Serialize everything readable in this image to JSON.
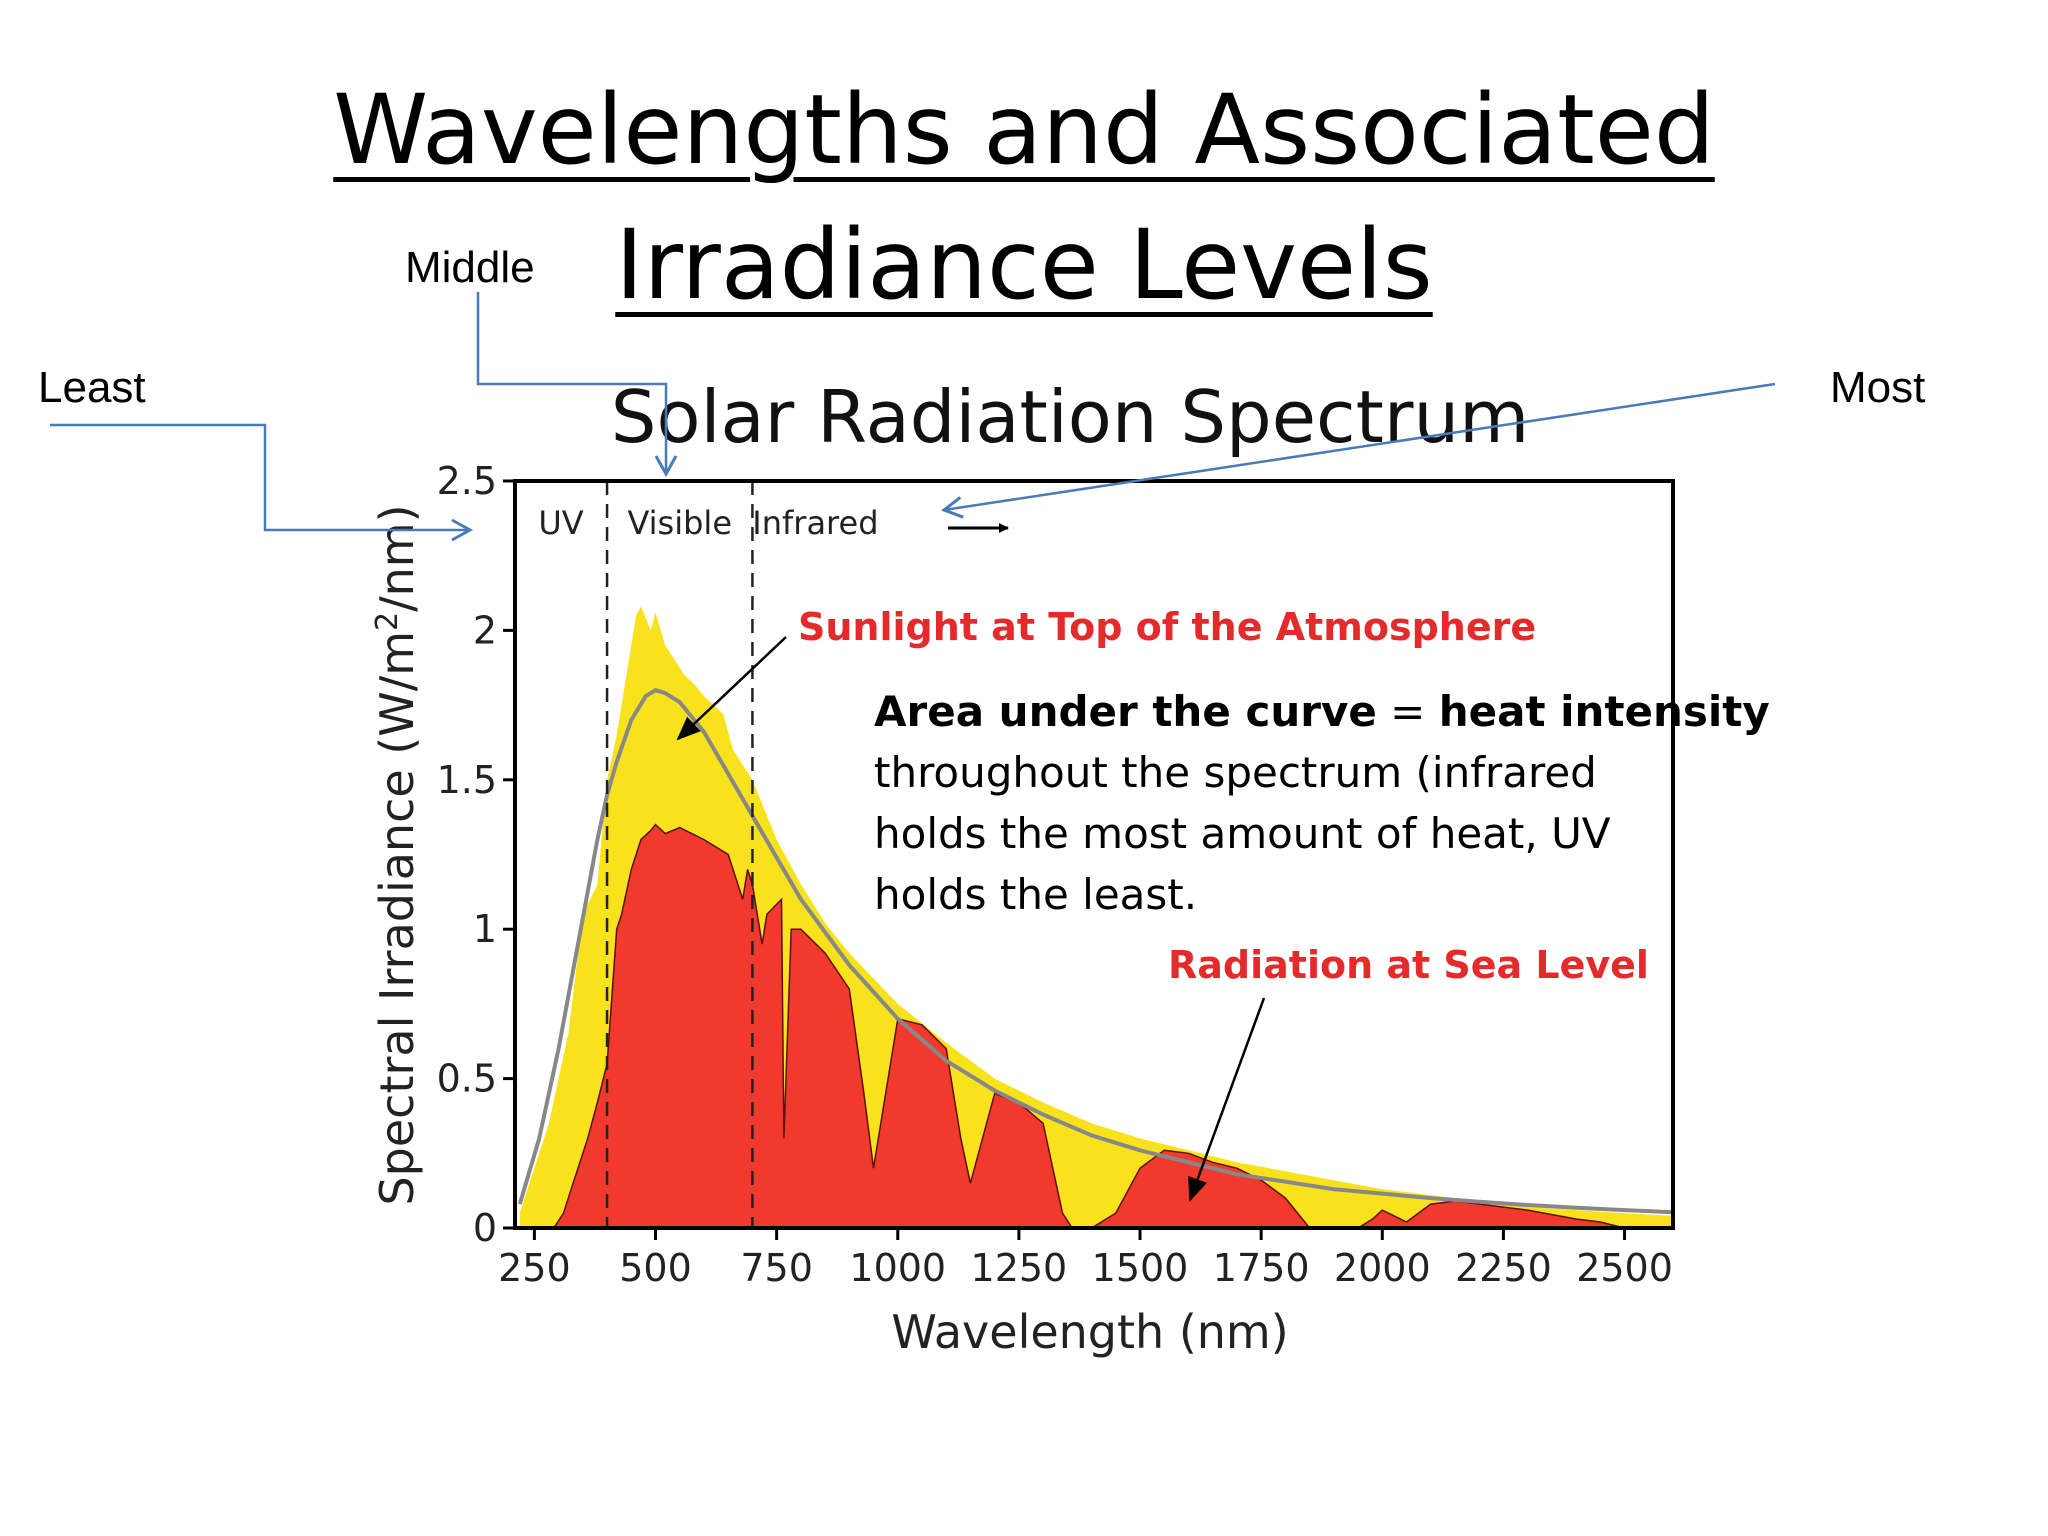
{
  "slide": {
    "title_line1": "Wavelengths and Associated",
    "title_line2": "Irradiance  Levels"
  },
  "callouts": {
    "least": "Least",
    "middle": "Middle",
    "most": "Most",
    "arrow_color": "#4a7ab8"
  },
  "chart_data": {
    "type": "area",
    "title": "Solar Radiation Spectrum",
    "xlabel": "Wavelength (nm)",
    "ylabel_prefix": "Spectral Irradiance (W/m",
    "ylabel_sup": "2",
    "ylabel_suffix": "/nm)",
    "xlim": [
      210,
      2600
    ],
    "ylim": [
      0,
      2.5
    ],
    "xticks": [
      250,
      500,
      750,
      1000,
      1250,
      1500,
      1750,
      2000,
      2250,
      2500
    ],
    "yticks": [
      {
        "value": 0,
        "label": "0"
      },
      {
        "value": 0.5,
        "label": "0.5"
      },
      {
        "value": 1,
        "label": "1"
      },
      {
        "value": 1.5,
        "label": "1.5"
      },
      {
        "value": 2,
        "label": "2"
      },
      {
        "value": 2.5,
        "label": "2.5"
      }
    ],
    "regions": [
      {
        "label": "UV",
        "x": 305
      },
      {
        "label": "Visible",
        "x": 550
      },
      {
        "label": "Infrared",
        "x": 830
      }
    ],
    "boundaries": [
      400,
      700
    ],
    "series": [
      {
        "name": "Sunlight at Top of the Atmosphere",
        "color": "#f7e21c",
        "x": [
          220,
          280,
          320,
          350,
          380,
          400,
          420,
          440,
          460,
          470,
          490,
          500,
          520,
          540,
          560,
          580,
          600,
          620,
          640,
          660,
          680,
          700,
          720,
          750,
          800,
          850,
          900,
          1000,
          1100,
          1200,
          1300,
          1400,
          1500,
          1600,
          1700,
          1800,
          1900,
          2000,
          2100,
          2200,
          2300,
          2400,
          2500,
          2600
        ],
        "y": [
          0.05,
          0.35,
          0.65,
          1.05,
          1.15,
          1.5,
          1.65,
          1.85,
          2.05,
          2.08,
          2.0,
          2.06,
          1.95,
          1.9,
          1.85,
          1.82,
          1.78,
          1.75,
          1.72,
          1.6,
          1.55,
          1.5,
          1.42,
          1.3,
          1.15,
          1.02,
          0.92,
          0.75,
          0.62,
          0.5,
          0.42,
          0.35,
          0.3,
          0.26,
          0.22,
          0.19,
          0.16,
          0.13,
          0.11,
          0.09,
          0.07,
          0.06,
          0.05,
          0.04
        ]
      },
      {
        "name": "Radiation at Sea Level",
        "color": "#f2392e",
        "x": [
          290,
          310,
          330,
          360,
          380,
          400,
          420,
          430,
          450,
          470,
          490,
          500,
          520,
          550,
          600,
          650,
          680,
          690,
          700,
          720,
          730,
          760,
          765,
          780,
          800,
          850,
          900,
          930,
          950,
          1000,
          1050,
          1100,
          1130,
          1150,
          1200,
          1250,
          1300,
          1340,
          1360,
          1400,
          1450,
          1500,
          1550,
          1600,
          1650,
          1700,
          1750,
          1800,
          1850,
          1900,
          1950,
          1980,
          2000,
          2050,
          2100,
          2150,
          2200,
          2300,
          2400,
          2450,
          2500,
          2600
        ],
        "y": [
          0.0,
          0.05,
          0.15,
          0.3,
          0.42,
          0.55,
          1.0,
          1.05,
          1.2,
          1.3,
          1.33,
          1.35,
          1.32,
          1.34,
          1.3,
          1.25,
          1.1,
          1.2,
          1.15,
          0.95,
          1.05,
          1.1,
          0.3,
          1.0,
          1.0,
          0.92,
          0.8,
          0.45,
          0.2,
          0.7,
          0.68,
          0.6,
          0.3,
          0.15,
          0.45,
          0.42,
          0.35,
          0.05,
          0.0,
          0.0,
          0.05,
          0.2,
          0.26,
          0.25,
          0.22,
          0.2,
          0.16,
          0.1,
          0.0,
          0.0,
          0.0,
          0.03,
          0.06,
          0.02,
          0.08,
          0.09,
          0.08,
          0.06,
          0.03,
          0.02,
          0.0,
          0.0
        ]
      },
      {
        "name": "",
        "color": "#888888",
        "x": [
          220,
          260,
          300,
          340,
          380,
          400,
          420,
          450,
          480,
          500,
          520,
          550,
          600,
          650,
          700,
          750,
          800,
          900,
          1000,
          1100,
          1200,
          1300,
          1400,
          1500,
          1600,
          1700,
          1800,
          1900,
          2000,
          2100,
          2200,
          2300,
          2400,
          2500,
          2600
        ],
        "y": [
          0.08,
          0.3,
          0.6,
          0.95,
          1.3,
          1.45,
          1.56,
          1.7,
          1.78,
          1.8,
          1.79,
          1.76,
          1.66,
          1.52,
          1.38,
          1.24,
          1.1,
          0.88,
          0.7,
          0.56,
          0.46,
          0.38,
          0.31,
          0.26,
          0.22,
          0.18,
          0.155,
          0.13,
          0.115,
          0.1,
          0.088,
          0.077,
          0.068,
          0.06,
          0.053
        ]
      }
    ],
    "annotations": {
      "top_label": "Sunlight at Top of the Atmosphere",
      "sea_label": "Radiation at Sea Level",
      "label_color": "#e42a2a",
      "note_bold1": "Area under the curve",
      "note_eq": " = ",
      "note_bold2": "heat intensity",
      "note_line2": "throughout the spectrum (infrared",
      "note_line3": "holds the most amount of heat, UV",
      "note_line4": "holds the least."
    },
    "grid": false,
    "legend": "none"
  }
}
